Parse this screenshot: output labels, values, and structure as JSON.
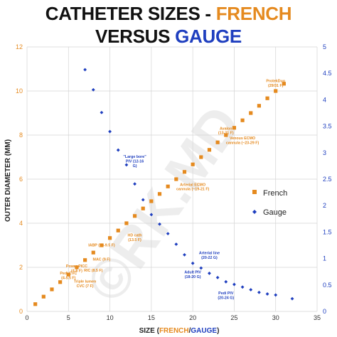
{
  "title": {
    "line1_prefix": "CATHETER SIZES - ",
    "line1_highlight": "FRENCH",
    "line2_prefix": "VERSUS ",
    "line2_highlight": "GAUGE"
  },
  "watermark": "©RK.MD",
  "colors": {
    "french": "#e58a1f",
    "gauge": "#1f3fbf",
    "grid": "#d4d4d4"
  },
  "chart_data": {
    "type": "scatter",
    "xlabel": {
      "prefix": "SIZE (",
      "french": "FRENCH",
      "sep": "/",
      "gauge": "GAUGE",
      "suffix": ")"
    },
    "ylabel": "OUTER DIAMETER (MM)",
    "xlim": [
      0,
      35
    ],
    "ylim_left": [
      0,
      12
    ],
    "ylim_right": [
      0,
      5
    ],
    "x_ticks": [
      0,
      5,
      10,
      15,
      20,
      25,
      30,
      35
    ],
    "y_left_ticks": [
      0,
      2,
      4,
      6,
      8,
      10,
      12
    ],
    "y_right_ticks": [
      0,
      0.5,
      1,
      1.5,
      2,
      2.5,
      3,
      3.5,
      4,
      4.5,
      5
    ],
    "grid": true,
    "legend_position": "right",
    "series": [
      {
        "name": "French",
        "axis": "left",
        "marker": "square",
        "x": [
          1,
          2,
          3,
          4,
          5,
          6,
          7,
          8,
          9,
          10,
          11,
          12,
          13,
          14,
          15,
          16,
          17,
          18,
          19,
          20,
          21,
          22,
          23,
          24,
          25,
          26,
          27,
          28,
          29,
          30,
          31
        ],
        "y": [
          0.33,
          0.67,
          1.0,
          1.33,
          1.67,
          2.0,
          2.33,
          2.67,
          3.0,
          3.33,
          3.67,
          4.0,
          4.33,
          4.67,
          5.0,
          5.33,
          5.67,
          6.0,
          6.33,
          6.67,
          7.0,
          7.33,
          7.67,
          8.0,
          8.33,
          8.67,
          9.0,
          9.33,
          9.67,
          10.0,
          10.33
        ]
      },
      {
        "name": "Gauge",
        "axis": "right",
        "marker": "diamond",
        "x": [
          7,
          8,
          9,
          10,
          11,
          12,
          13,
          14,
          15,
          16,
          17,
          18,
          19,
          20,
          21,
          22,
          23,
          24,
          25,
          26,
          27,
          28,
          29,
          30,
          32
        ],
        "y": [
          4.57,
          4.19,
          3.76,
          3.4,
          3.05,
          2.77,
          2.41,
          2.11,
          1.83,
          1.65,
          1.47,
          1.27,
          1.07,
          0.91,
          0.82,
          0.72,
          0.64,
          0.56,
          0.51,
          0.46,
          0.41,
          0.36,
          0.33,
          0.31,
          0.24
        ]
      }
    ],
    "annotations": [
      {
        "series": "French",
        "lines": [
          "Pedi CVC",
          "(4-5.5 F)"
        ],
        "x": 5,
        "y": 1.67
      },
      {
        "series": "French",
        "lines": [
          "Power PICC",
          "(4-6 F)"
        ],
        "x": 6,
        "y": 2.0
      },
      {
        "series": "French",
        "lines": [
          "Triple lumen",
          "CVC (7 F)"
        ],
        "x": 7,
        "y": 1.3
      },
      {
        "series": "French",
        "lines": [
          "RIC (8.5 F)"
        ],
        "x": 8,
        "y": 1.8
      },
      {
        "series": "French",
        "lines": [
          "MAC (9 F)"
        ],
        "x": 9,
        "y": 2.3
      },
      {
        "series": "French",
        "lines": [
          "IABP (~8-9.5 F)"
        ],
        "x": 9,
        "y": 2.95
      },
      {
        "series": "French",
        "lines": [
          "HD cath",
          "(13.5 F)"
        ],
        "x": 13,
        "y": 3.4
      },
      {
        "series": "French",
        "lines": [
          "Arterial ECMO",
          "cannula (~19-21 F)"
        ],
        "x": 20,
        "y": 5.7
      },
      {
        "series": "French",
        "lines": [
          "Avalon",
          "(13-31 F)"
        ],
        "x": 24,
        "y": 8.25
      },
      {
        "series": "French",
        "lines": [
          "Venous ECMO",
          "cannula (~23-29 F)"
        ],
        "x": 26,
        "y": 7.8
      },
      {
        "series": "French",
        "lines": [
          "ProtekDuo",
          "(29/31 F)"
        ],
        "x": 30,
        "y": 10.4
      },
      {
        "series": "Gauge",
        "lines": [
          "\"Large bore\"",
          "PIV (12-16",
          "G)"
        ],
        "x": 13,
        "y": 2.9
      },
      {
        "series": "Gauge",
        "lines": [
          "Arterial line",
          "(20-22 G)"
        ],
        "x": 22,
        "y": 1.08
      },
      {
        "series": "Gauge",
        "lines": [
          "Adult PIV",
          "(18-20 G)"
        ],
        "x": 20,
        "y": 0.72
      },
      {
        "series": "Gauge",
        "lines": [
          "Pedi PIV",
          "(20-24 G)"
        ],
        "x": 24,
        "y": 0.32
      }
    ]
  }
}
